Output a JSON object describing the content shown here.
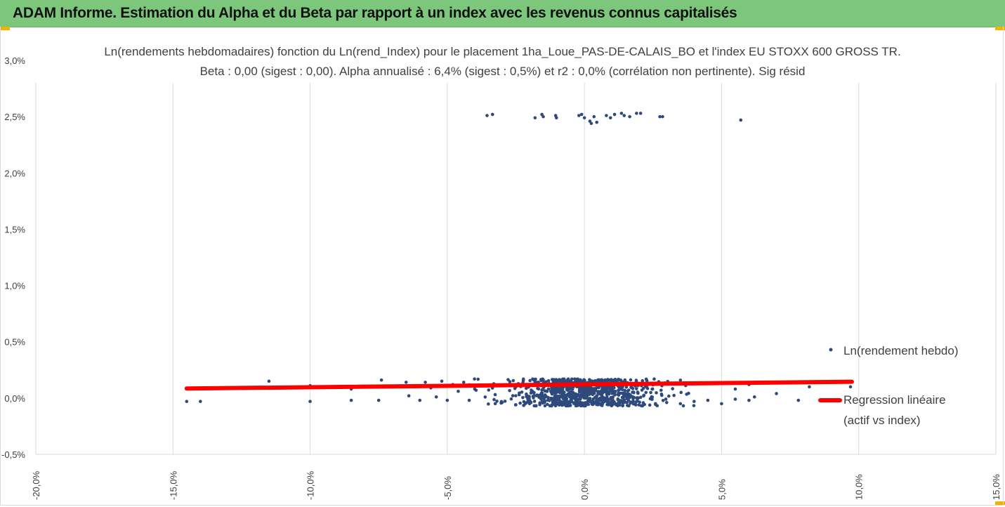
{
  "banner": {
    "title": "ADAM Informe. Estimation du Alpha et du Beta par rapport à un index avec les revenus connus capitalisés"
  },
  "colors": {
    "banner_bg": "#7dc77d",
    "accent_corner": "#f0b400",
    "points": "#2e4a7d",
    "regression": "#ff0000",
    "grid": "#d9d9d9",
    "text": "#404040"
  },
  "chart_data": {
    "type": "scatter",
    "title_line1": "Ln(rendements hebdomadaires) fonction du Ln(rend_Index) pour le placement 1ha_Loue_PAS-DE-CALAIS_BO et l'index EU STOXX 600 GROSS TR.",
    "title_line2": "Beta : 0,00 (sigest : 0,00). Alpha annualisé : 6,4% (sigest : 0,5%) et r2 : 0,0% (corrélation non pertinente). Sig résid",
    "xlim": [
      -0.2,
      0.15
    ],
    "ylim": [
      -0.005,
      0.03
    ],
    "x_ticks": [
      "-20,0%",
      "-15,0%",
      "-10,0%",
      "-5,0%",
      "0,0%",
      "5,0%",
      "10,0%",
      "15,0%"
    ],
    "x_tick_values": [
      -0.2,
      -0.15,
      -0.1,
      -0.05,
      0.0,
      0.05,
      0.1,
      0.15
    ],
    "y_ticks": [
      "-0,5%",
      "0,0%",
      "0,5%",
      "1,0%",
      "1,5%",
      "2,0%",
      "2,5%",
      "3,0%"
    ],
    "y_tick_values": [
      -0.005,
      0.0,
      0.005,
      0.01,
      0.015,
      0.02,
      0.025,
      0.03
    ],
    "grid": "vertical",
    "legend_position": "right",
    "series": [
      {
        "name": "Ln(rendement hebdo)",
        "points": [
          [
            -0.0355,
            0.0251
          ],
          [
            -0.0335,
            0.0252
          ],
          [
            -0.018,
            0.0249
          ],
          [
            -0.0155,
            0.0252
          ],
          [
            -0.015,
            0.025
          ],
          [
            -0.0105,
            0.0251
          ],
          [
            -0.0102,
            0.0249
          ],
          [
            -0.002,
            0.0251
          ],
          [
            -0.001,
            0.0252
          ],
          [
            0.0,
            0.0249
          ],
          [
            0.002,
            0.0246
          ],
          [
            0.0025,
            0.0244
          ],
          [
            0.0035,
            0.025
          ],
          [
            0.0045,
            0.0245
          ],
          [
            0.008,
            0.0251
          ],
          [
            0.0095,
            0.0249
          ],
          [
            0.011,
            0.0252
          ],
          [
            0.0135,
            0.0253
          ],
          [
            0.0145,
            0.0251
          ],
          [
            0.0165,
            0.025
          ],
          [
            0.019,
            0.0253
          ],
          [
            0.0205,
            0.0253
          ],
          [
            0.0275,
            0.025
          ],
          [
            0.0285,
            0.025
          ],
          [
            0.057,
            0.0247
          ],
          [
            -0.145,
            -0.0003
          ],
          [
            -0.14,
            -0.0003
          ],
          [
            -0.115,
            0.0015
          ],
          [
            -0.1,
            0.0011
          ],
          [
            -0.1,
            -0.0003
          ],
          [
            -0.093,
            0.001
          ],
          [
            -0.085,
            0.0008
          ],
          [
            -0.085,
            -0.0002
          ],
          [
            -0.075,
            -0.0002
          ],
          [
            -0.074,
            0.0016
          ],
          [
            -0.07,
            0.001
          ],
          [
            -0.065,
            0.0014
          ],
          [
            -0.064,
            0.0002
          ],
          [
            -0.062,
            0.001
          ],
          [
            -0.06,
            -0.0002
          ],
          [
            -0.058,
            0.0014
          ],
          [
            -0.056,
            0.0009
          ],
          [
            -0.054,
            0.0001
          ],
          [
            -0.052,
            0.0015
          ],
          [
            -0.05,
            -0.0002
          ],
          [
            -0.048,
            0.0012
          ],
          [
            -0.046,
            0.0006
          ],
          [
            -0.044,
            0.0014
          ],
          [
            -0.042,
            -0.0002
          ],
          [
            -0.04,
            0.0008
          ],
          [
            -0.0325,
            -0.0005
          ],
          [
            -0.03,
            -0.0004
          ],
          [
            -0.025,
            -0.0006
          ],
          [
            -0.02,
            -0.0005
          ],
          [
            -0.015,
            -0.0004
          ],
          [
            0.03,
            -0.0004
          ],
          [
            0.035,
            -0.0005
          ],
          [
            0.04,
            -0.0003
          ],
          [
            0.045,
            -0.0002
          ],
          [
            0.05,
            -0.0005
          ],
          [
            0.055,
            -0.0001
          ],
          [
            0.06,
            -0.0002
          ],
          [
            0.062,
            0.0001
          ],
          [
            0.07,
            0.0004
          ],
          [
            0.078,
            -0.0002
          ],
          [
            0.082,
            0.001
          ],
          [
            0.097,
            0.001
          ],
          [
            0.055,
            0.0008
          ],
          [
            0.06,
            0.0012
          ],
          [
            0.065,
            0.0014
          ]
        ]
      },
      {
        "name": "Regression linéaire (actif vs index)",
        "line": [
          [
            -0.145,
            0.00085
          ],
          [
            0.0975,
            0.00145
          ]
        ]
      }
    ]
  },
  "legend": {
    "series_label": "Ln(rendement hebdo)",
    "regression_label_line1": "Regression linéaire",
    "regression_label_line2": "(actif vs index)"
  }
}
